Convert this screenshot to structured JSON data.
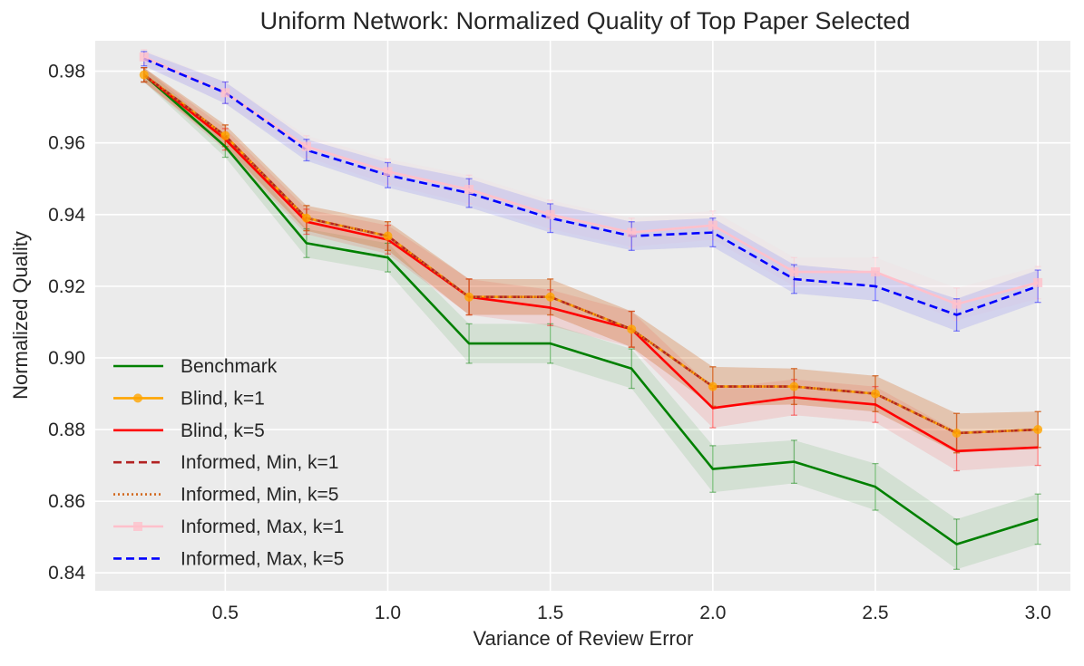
{
  "chart_data": {
    "type": "line",
    "title": "Uniform Network: Normalized Quality of Top Paper Selected",
    "xlabel": "Variance of Review Error",
    "ylabel": "Normalized Quality",
    "xlim": [
      0.1,
      3.1
    ],
    "ylim": [
      0.835,
      0.9885
    ],
    "x": [
      0.25,
      0.5,
      0.75,
      1.0,
      1.25,
      1.5,
      1.75,
      2.0,
      2.25,
      2.5,
      2.75,
      3.0
    ],
    "xticks": [
      0.5,
      1.0,
      1.5,
      2.0,
      2.5,
      3.0
    ],
    "xtick_labels": [
      "0.5",
      "1.0",
      "1.5",
      "2.0",
      "2.5",
      "3.0"
    ],
    "yticks": [
      0.84,
      0.86,
      0.88,
      0.9,
      0.92,
      0.94,
      0.96,
      0.98
    ],
    "ytick_labels": [
      "0.84",
      "0.86",
      "0.88",
      "0.90",
      "0.92",
      "0.94",
      "0.96",
      "0.98"
    ],
    "grid": true,
    "legend_position": "lower-left",
    "series": [
      {
        "name": "Benchmark",
        "color": "#008000",
        "style": "solid",
        "marker": "none",
        "values": [
          0.979,
          0.959,
          0.932,
          0.928,
          0.904,
          0.904,
          0.897,
          0.869,
          0.871,
          0.864,
          0.848,
          0.855
        ],
        "err": [
          0.002,
          0.003,
          0.004,
          0.004,
          0.0055,
          0.0055,
          0.0055,
          0.0065,
          0.006,
          0.0065,
          0.007,
          0.007
        ]
      },
      {
        "name": "Blind, k=1",
        "color": "#ffa500",
        "style": "solid",
        "marker": "circle",
        "values": [
          0.979,
          0.962,
          0.939,
          0.934,
          0.917,
          0.917,
          0.908,
          0.892,
          0.892,
          0.89,
          0.879,
          0.88
        ],
        "err": [
          0.002,
          0.003,
          0.0035,
          0.004,
          0.005,
          0.005,
          0.005,
          0.0055,
          0.005,
          0.005,
          0.0055,
          0.005
        ]
      },
      {
        "name": "Blind, k=5",
        "color": "#ff0000",
        "style": "solid",
        "marker": "none",
        "values": [
          0.979,
          0.961,
          0.938,
          0.933,
          0.917,
          0.914,
          0.908,
          0.886,
          0.889,
          0.887,
          0.874,
          0.875
        ],
        "err": [
          0.002,
          0.003,
          0.0035,
          0.004,
          0.005,
          0.005,
          0.005,
          0.0055,
          0.005,
          0.005,
          0.0055,
          0.005
        ]
      },
      {
        "name": "Informed, Min, k=1",
        "color": "#b22222",
        "style": "dashed",
        "marker": "none",
        "values": [
          0.979,
          0.962,
          0.939,
          0.934,
          0.917,
          0.917,
          0.908,
          0.892,
          0.892,
          0.89,
          0.879,
          0.88
        ],
        "err": [
          0.002,
          0.003,
          0.0035,
          0.004,
          0.005,
          0.005,
          0.005,
          0.0055,
          0.005,
          0.005,
          0.0055,
          0.005
        ]
      },
      {
        "name": "Informed, Min, k=5",
        "color": "#d2691e",
        "style": "dotted",
        "marker": "none",
        "values": [
          0.979,
          0.962,
          0.939,
          0.934,
          0.917,
          0.917,
          0.908,
          0.892,
          0.892,
          0.89,
          0.879,
          0.88
        ],
        "err": [
          0.002,
          0.003,
          0.0035,
          0.004,
          0.005,
          0.005,
          0.005,
          0.0055,
          0.005,
          0.005,
          0.0055,
          0.005
        ]
      },
      {
        "name": "Informed, Max, k=1",
        "color": "#ffc0cb",
        "style": "solid",
        "marker": "square",
        "values": [
          0.984,
          0.974,
          0.959,
          0.952,
          0.947,
          0.94,
          0.935,
          0.937,
          0.924,
          0.924,
          0.915,
          0.921
        ],
        "err": [
          0.002,
          0.003,
          0.003,
          0.0035,
          0.004,
          0.004,
          0.004,
          0.004,
          0.004,
          0.004,
          0.0045,
          0.0045
        ]
      },
      {
        "name": "Informed, Max, k=5",
        "color": "#0000ff",
        "style": "dashed",
        "marker": "none",
        "values": [
          0.9835,
          0.974,
          0.958,
          0.951,
          0.946,
          0.939,
          0.934,
          0.935,
          0.922,
          0.92,
          0.912,
          0.92
        ],
        "err": [
          0.002,
          0.003,
          0.003,
          0.0035,
          0.004,
          0.004,
          0.004,
          0.004,
          0.004,
          0.004,
          0.0045,
          0.0045
        ]
      }
    ]
  }
}
